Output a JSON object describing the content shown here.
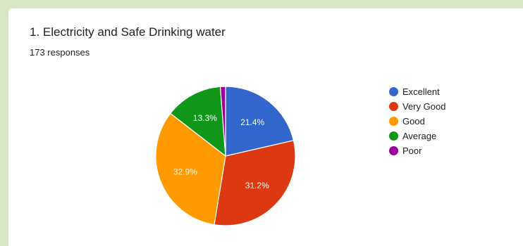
{
  "question": {
    "title": "1. Electricity and Safe Drinking water",
    "responses": "173 responses"
  },
  "chart_data": {
    "type": "pie",
    "title": "1. Electricity and Safe Drinking water",
    "categories": [
      "Excellent",
      "Very Good",
      "Good",
      "Average",
      "Poor"
    ],
    "values": [
      21.4,
      31.2,
      32.9,
      13.3,
      1.2
    ],
    "labels": [
      "21.4%",
      "31.2%",
      "32.9%",
      "13.3%",
      ""
    ],
    "colors": [
      "#3366cc",
      "#dc3912",
      "#ff9900",
      "#109618",
      "#990099"
    ],
    "start_angle_deg": 90,
    "direction": "clockwise",
    "legend_position": "right"
  }
}
